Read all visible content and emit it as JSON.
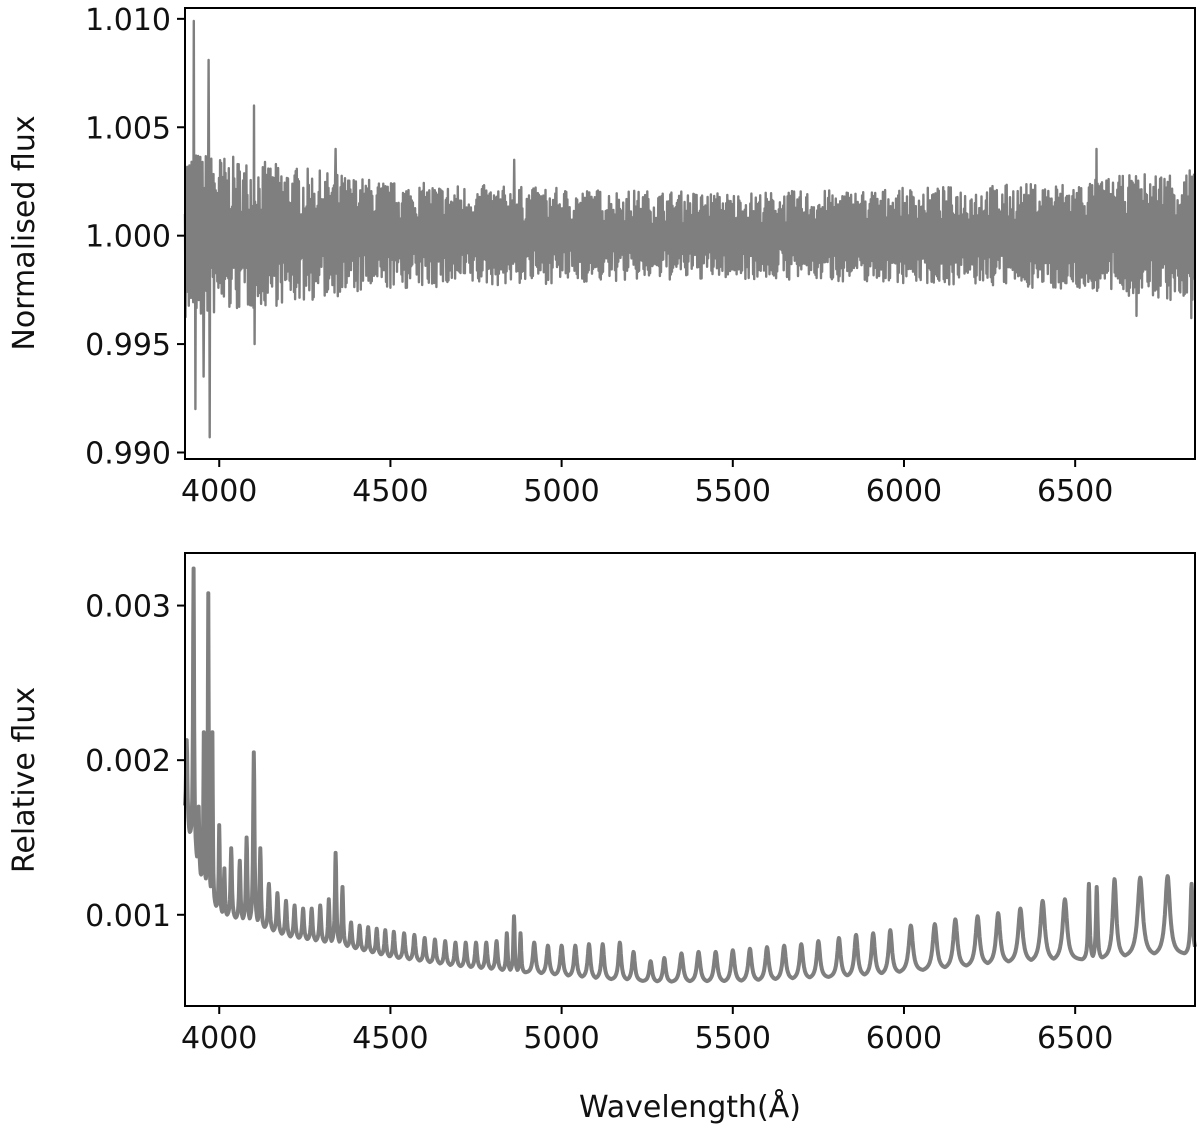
{
  "chart_data": [
    {
      "type": "line",
      "title": "",
      "xlabel": "",
      "ylabel": "Normalised flux",
      "xlim": [
        3900,
        6850
      ],
      "ylim": [
        0.9897,
        1.0105
      ],
      "x_ticks": [
        4000,
        4500,
        5000,
        5500,
        6000,
        6500
      ],
      "x_tick_labels": [
        "4000",
        "4500",
        "5000",
        "5500",
        "6000",
        "6500"
      ],
      "y_ticks": [
        0.99,
        0.995,
        1.0,
        1.005,
        1.01
      ],
      "y_tick_labels": [
        "0.990",
        "0.995",
        "1.000",
        "1.005",
        "1.010"
      ],
      "grid": false,
      "legend": "none",
      "color": "#7f7f7f",
      "series": [
        {
          "x_range": [
            3900,
            6850
          ],
          "center": 1.0,
          "description_values": {
            "envelope_upper": [
              [
                3900,
                1.004
              ],
              [
                4100,
                1.0035
              ],
              [
                4500,
                1.0025
              ],
              [
                5000,
                1.0022
              ],
              [
                5500,
                1.002
              ],
              [
                6000,
                1.0022
              ],
              [
                6500,
                1.0025
              ],
              [
                6850,
                1.0032
              ]
            ],
            "envelope_lower": [
              [
                3900,
                0.996
              ],
              [
                4100,
                0.9966
              ],
              [
                4500,
                0.9975
              ],
              [
                5000,
                0.9978
              ],
              [
                5500,
                0.998
              ],
              [
                6000,
                0.9978
              ],
              [
                6500,
                0.9975
              ],
              [
                6850,
                0.9968
              ]
            ]
          },
          "spikes": [
            {
              "x": 3925,
              "y": 1.0099
            },
            {
              "x": 3930,
              "y": 0.992
            },
            {
              "x": 3955,
              "y": 0.9935
            },
            {
              "x": 3968,
              "y": 1.0081
            },
            {
              "x": 3972,
              "y": 0.9907
            },
            {
              "x": 4101,
              "y": 1.006
            },
            {
              "x": 4103,
              "y": 0.995
            },
            {
              "x": 4340,
              "y": 1.004
            },
            {
              "x": 4861,
              "y": 1.0035
            },
            {
              "x": 6563,
              "y": 1.004
            },
            {
              "x": 6680,
              "y": 0.9963
            },
            {
              "x": 6840,
              "y": 0.9962
            }
          ]
        }
      ]
    },
    {
      "type": "line",
      "title": "",
      "xlabel": "Wavelength(Å)",
      "ylabel": "Relative flux",
      "xlim": [
        3900,
        6850
      ],
      "ylim": [
        0.00041,
        0.00334
      ],
      "x_ticks": [
        4000,
        4500,
        5000,
        5500,
        6000,
        6500
      ],
      "x_tick_labels": [
        "4000",
        "4500",
        "5000",
        "5500",
        "6000",
        "6500"
      ],
      "y_ticks": [
        0.001,
        0.002,
        0.003
      ],
      "y_tick_labels": [
        "0.001",
        "0.002",
        "0.003"
      ],
      "grid": false,
      "legend": "none",
      "color": "#7f7f7f",
      "series": [
        {
          "baseline": [
            [
              3900,
              0.0016
            ],
            [
              3950,
              0.0012
            ],
            [
              4000,
              0.001
            ],
            [
              4100,
              0.00093
            ],
            [
              4200,
              0.00085
            ],
            [
              4350,
              0.0008
            ],
            [
              4500,
              0.00072
            ],
            [
              4700,
              0.00066
            ],
            [
              4900,
              0.00062
            ],
            [
              5100,
              0.00058
            ],
            [
              5300,
              0.00056
            ],
            [
              5500,
              0.00056
            ],
            [
              5700,
              0.00058
            ],
            [
              5900,
              0.0006
            ],
            [
              6100,
              0.00064
            ],
            [
              6300,
              0.00068
            ],
            [
              6500,
              0.0007
            ],
            [
              6850,
              0.00074
            ]
          ],
          "peaks": [
            {
              "x": 3905,
              "y": 0.00213
            },
            {
              "x": 3925,
              "y": 0.00324
            },
            {
              "x": 3940,
              "y": 0.0017
            },
            {
              "x": 3955,
              "y": 0.00218
            },
            {
              "x": 3968,
              "y": 0.00308
            },
            {
              "x": 3980,
              "y": 0.00218
            },
            {
              "x": 4000,
              "y": 0.00158
            },
            {
              "x": 4015,
              "y": 0.0013
            },
            {
              "x": 4035,
              "y": 0.00143
            },
            {
              "x": 4060,
              "y": 0.00135
            },
            {
              "x": 4080,
              "y": 0.0015
            },
            {
              "x": 4101,
              "y": 0.00205
            },
            {
              "x": 4120,
              "y": 0.00143
            },
            {
              "x": 4145,
              "y": 0.0012
            },
            {
              "x": 4170,
              "y": 0.00114
            },
            {
              "x": 4195,
              "y": 0.00109
            },
            {
              "x": 4220,
              "y": 0.00106
            },
            {
              "x": 4245,
              "y": 0.00104
            },
            {
              "x": 4270,
              "y": 0.00104
            },
            {
              "x": 4295,
              "y": 0.00106
            },
            {
              "x": 4320,
              "y": 0.0011
            },
            {
              "x": 4340,
              "y": 0.0014
            },
            {
              "x": 4360,
              "y": 0.00118
            },
            {
              "x": 4385,
              "y": 0.00095
            },
            {
              "x": 4410,
              "y": 0.00093
            },
            {
              "x": 4435,
              "y": 0.00092
            },
            {
              "x": 4460,
              "y": 0.00091
            },
            {
              "x": 4485,
              "y": 0.0009
            },
            {
              "x": 4510,
              "y": 0.00089
            },
            {
              "x": 4540,
              "y": 0.00088
            },
            {
              "x": 4570,
              "y": 0.00087
            },
            {
              "x": 4600,
              "y": 0.00085
            },
            {
              "x": 4630,
              "y": 0.00084
            },
            {
              "x": 4660,
              "y": 0.00083
            },
            {
              "x": 4690,
              "y": 0.00082
            },
            {
              "x": 4720,
              "y": 0.00082
            },
            {
              "x": 4750,
              "y": 0.00082
            },
            {
              "x": 4780,
              "y": 0.00082
            },
            {
              "x": 4810,
              "y": 0.00083
            },
            {
              "x": 4840,
              "y": 0.00088
            },
            {
              "x": 4861,
              "y": 0.00099
            },
            {
              "x": 4880,
              "y": 0.00088
            },
            {
              "x": 4920,
              "y": 0.00082
            },
            {
              "x": 4960,
              "y": 0.0008
            },
            {
              "x": 5000,
              "y": 0.0008
            },
            {
              "x": 5040,
              "y": 0.0008
            },
            {
              "x": 5080,
              "y": 0.00081
            },
            {
              "x": 5120,
              "y": 0.00081
            },
            {
              "x": 5170,
              "y": 0.00082
            },
            {
              "x": 5210,
              "y": 0.00076
            },
            {
              "x": 5260,
              "y": 0.0007
            },
            {
              "x": 5300,
              "y": 0.00072
            },
            {
              "x": 5350,
              "y": 0.00075
            },
            {
              "x": 5400,
              "y": 0.00076
            },
            {
              "x": 5450,
              "y": 0.00076
            },
            {
              "x": 5500,
              "y": 0.00077
            },
            {
              "x": 5550,
              "y": 0.00078
            },
            {
              "x": 5600,
              "y": 0.00079
            },
            {
              "x": 5650,
              "y": 0.0008
            },
            {
              "x": 5700,
              "y": 0.00081
            },
            {
              "x": 5750,
              "y": 0.00083
            },
            {
              "x": 5810,
              "y": 0.00085
            },
            {
              "x": 5860,
              "y": 0.00087
            },
            {
              "x": 5910,
              "y": 0.00088
            },
            {
              "x": 5960,
              "y": 0.0009
            },
            {
              "x": 6020,
              "y": 0.00093
            },
            {
              "x": 6090,
              "y": 0.00094
            },
            {
              "x": 6150,
              "y": 0.00097
            },
            {
              "x": 6215,
              "y": 0.00099
            },
            {
              "x": 6275,
              "y": 0.00101
            },
            {
              "x": 6340,
              "y": 0.00104
            },
            {
              "x": 6405,
              "y": 0.00109
            },
            {
              "x": 6470,
              "y": 0.0011
            },
            {
              "x": 6540,
              "y": 0.0012
            },
            {
              "x": 6563,
              "y": 0.00118
            },
            {
              "x": 6615,
              "y": 0.00123
            },
            {
              "x": 6690,
              "y": 0.00124
            },
            {
              "x": 6770,
              "y": 0.00125
            },
            {
              "x": 6840,
              "y": 0.0012
            }
          ]
        }
      ]
    }
  ]
}
